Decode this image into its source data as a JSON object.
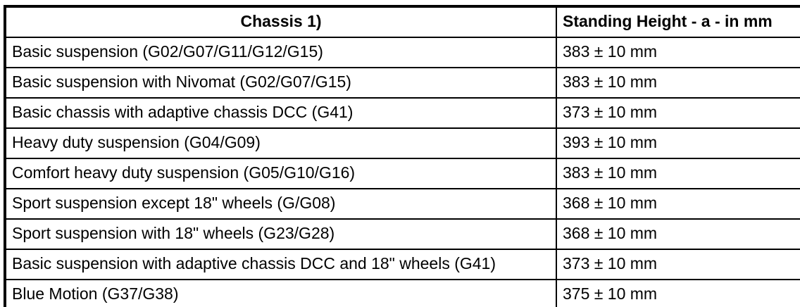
{
  "table": {
    "columns": [
      {
        "label": "Chassis 1)"
      },
      {
        "label": "Standing Height - a - in mm"
      }
    ],
    "rows": [
      {
        "chassis": "Basic suspension (G02/G07/G11/G12/G15)",
        "height": "383 ± 10 mm"
      },
      {
        "chassis": "Basic suspension with Nivomat (G02/G07/G15)",
        "height": "383 ± 10 mm"
      },
      {
        "chassis": "Basic chassis with adaptive chassis DCC (G41)",
        "height": "373 ± 10 mm"
      },
      {
        "chassis": "Heavy duty suspension (G04/G09)",
        "height": "393 ± 10 mm"
      },
      {
        "chassis": "Comfort heavy duty suspension (G05/G10/G16)",
        "height": "383 ± 10 mm"
      },
      {
        "chassis": "Sport suspension except 18\" wheels (G/G08)",
        "height": "368 ± 10 mm"
      },
      {
        "chassis": "Sport suspension with 18\" wheels (G23/G28)",
        "height": "368 ± 10 mm"
      },
      {
        "chassis": "Basic suspension with adaptive chassis DCC and 18\" wheels (G41)",
        "height": "373 ± 10 mm"
      },
      {
        "chassis": "Blue Motion (G37/G38)",
        "height": "375 ± 10 mm"
      }
    ],
    "border_color": "#000000",
    "background_color": "#ffffff"
  }
}
